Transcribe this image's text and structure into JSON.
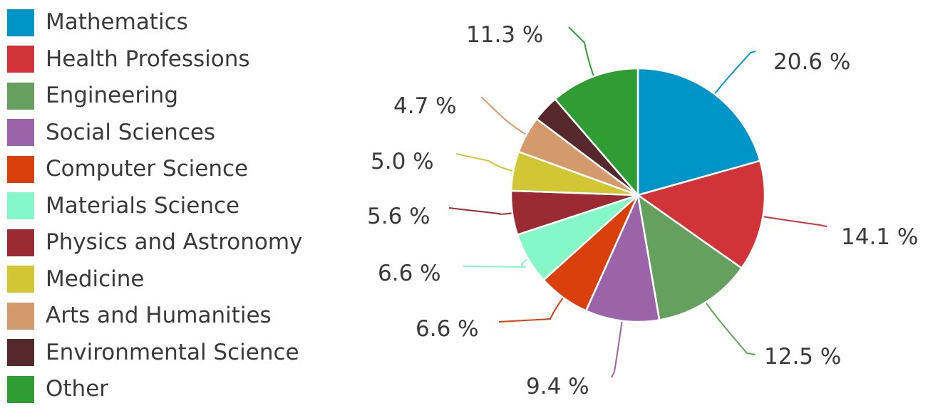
{
  "chart_data": {
    "type": "pie",
    "title": "",
    "legend_position": "left",
    "slices": [
      {
        "label": "Mathematics",
        "value": 20.6,
        "value_label": "20.6 %",
        "color": "#0095c8"
      },
      {
        "label": "Health Professions",
        "value": 14.1,
        "value_label": "14.1 %",
        "color": "#d03438"
      },
      {
        "label": "Engineering",
        "value": 12.5,
        "value_label": "12.5 %",
        "color": "#66a05e"
      },
      {
        "label": "Social Sciences",
        "value": 9.4,
        "value_label": "9.4 %",
        "color": "#9c64a8"
      },
      {
        "label": "Computer Science",
        "value": 6.6,
        "value_label": "6.6 %",
        "color": "#d9400b"
      },
      {
        "label": "Materials Science",
        "value": 6.6,
        "value_label": "6.6 %",
        "color": "#86f7c6"
      },
      {
        "label": "Physics and Astronomy",
        "value": 5.6,
        "value_label": "5.6 %",
        "color": "#9b2a33"
      },
      {
        "label": "Medicine",
        "value": 5.0,
        "value_label": "5.0 %",
        "color": "#d3c634"
      },
      {
        "label": "Arts and Humanities",
        "value": 4.7,
        "value_label": "4.7 %",
        "color": "#d59a6c"
      },
      {
        "label": "Environmental Science",
        "value": 3.4,
        "value_label": "",
        "color": "#55292b"
      },
      {
        "label": "Other",
        "value": 11.3,
        "value_label": "11.3 %",
        "color": "#2f9c34"
      }
    ]
  }
}
